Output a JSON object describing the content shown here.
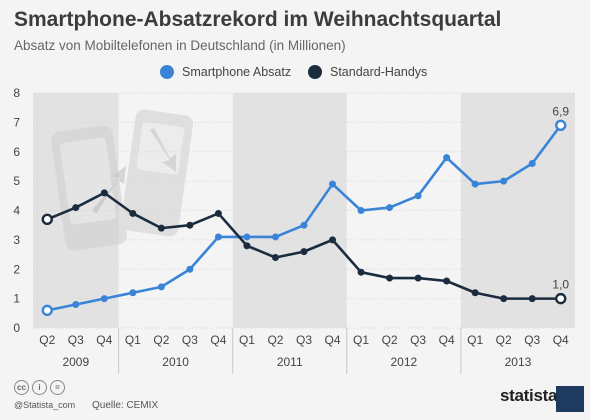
{
  "title": "Smartphone-Absatzrekord im Weihnachtsquartal",
  "subtitle": "Absatz von Mobiltelefonen in Deutschland (in Millionen)",
  "colors": {
    "smartphone": "#3a84d8",
    "standard": "#1b2c3f",
    "band": "#e2e2e2"
  },
  "legend": {
    "smartphone": "Smartphone Absatz",
    "standard": "Standard-Handys"
  },
  "footer": {
    "cc_label": "@Statista_com",
    "source": "Quelle: CEMIX",
    "brand": "statista"
  },
  "chart_data": {
    "type": "line",
    "categories": [
      "Q2",
      "Q3",
      "Q4",
      "Q1",
      "Q2",
      "Q3",
      "Q4",
      "Q1",
      "Q2",
      "Q3",
      "Q4",
      "Q1",
      "Q2",
      "Q3",
      "Q4",
      "Q1",
      "Q2",
      "Q3",
      "Q4"
    ],
    "years": [
      {
        "label": "2009",
        "quarters": 3
      },
      {
        "label": "2010",
        "quarters": 4
      },
      {
        "label": "2011",
        "quarters": 4
      },
      {
        "label": "2012",
        "quarters": 4
      },
      {
        "label": "2013",
        "quarters": 4
      }
    ],
    "series": [
      {
        "name": "Smartphone Absatz",
        "values": [
          0.6,
          0.8,
          1.0,
          1.2,
          1.4,
          2.0,
          3.1,
          3.1,
          3.1,
          3.5,
          4.9,
          4.0,
          4.1,
          4.5,
          5.8,
          4.9,
          5.0,
          5.6,
          6.9
        ]
      },
      {
        "name": "Standard-Handys",
        "values": [
          3.7,
          4.1,
          4.6,
          3.9,
          3.4,
          3.5,
          3.9,
          2.8,
          2.4,
          2.6,
          3.0,
          1.9,
          1.7,
          1.7,
          1.6,
          1.2,
          1.0,
          1.0,
          1.0
        ]
      }
    ],
    "annotations": [
      {
        "series": 0,
        "index": 18,
        "text": "6,9"
      },
      {
        "series": 1,
        "index": 18,
        "text": "1,0"
      }
    ],
    "yticks": [
      "0",
      "1",
      "2",
      "3",
      "4",
      "5",
      "6",
      "7",
      "8"
    ],
    "ylim": [
      0,
      8
    ],
    "grid": true,
    "legend_position": "top-center"
  }
}
